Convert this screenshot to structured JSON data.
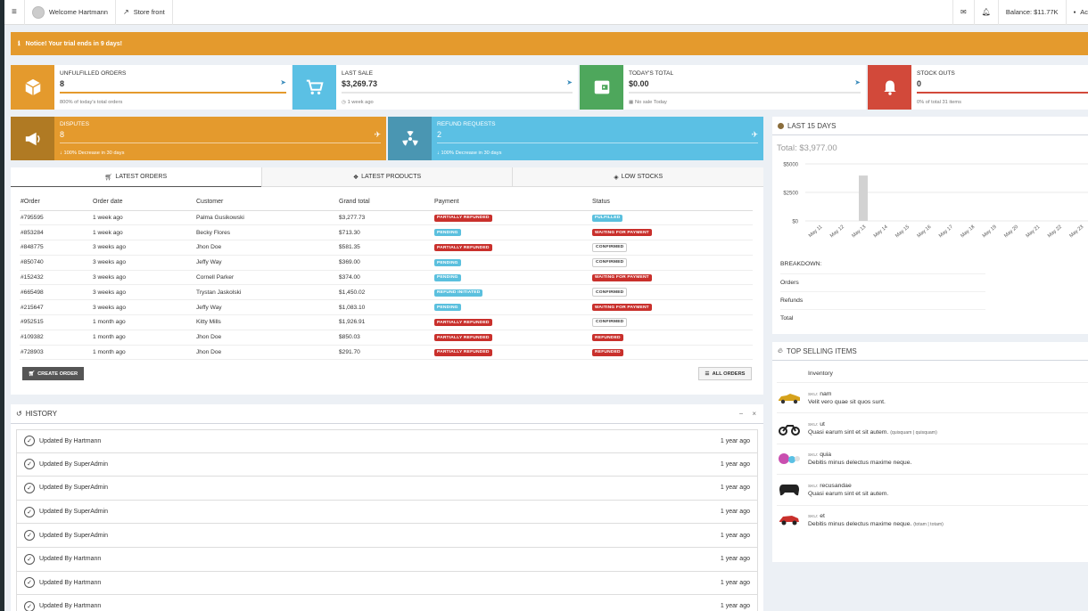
{
  "topbar": {
    "welcome": "Welcome Hartmann",
    "storefront": "Store front",
    "balance": "Balance: $11.77K",
    "account": "Ac"
  },
  "notice": {
    "label": "Notice!",
    "text": "Your trial ends in 9 days!"
  },
  "kpis": [
    {
      "label": "UNFULFILLED ORDERS",
      "value": "8",
      "sub": "800% of today's total orders",
      "color": "#e49a2d",
      "progress": 1.0
    },
    {
      "label": "LAST SALE",
      "value": "$3,269.73",
      "sub": "1 week ago",
      "color": "#5bc0e4",
      "progress": 0
    },
    {
      "label": "TODAY'S TOTAL",
      "value": "$0.00",
      "sub": "No sale Today",
      "color": "#4ea75c",
      "progress": 0
    },
    {
      "label": "STOCK OUTS",
      "value": "0",
      "sub": "0% of total 31 items",
      "color": "#d2493a",
      "progress": 1.0
    }
  ],
  "disputes": {
    "label": "DISPUTES",
    "value": "8",
    "sub": "100% Decrease in 30 days",
    "color": "#e49a2d",
    "icon_bg": "#b07a23"
  },
  "refunds": {
    "label": "REFUND REQUESTS",
    "value": "2",
    "sub": "100% Decrease in 30 days",
    "color": "#5bc0e4",
    "icon_bg": "#4a96b2"
  },
  "tabs": [
    "LATEST ORDERS",
    "LATEST PRODUCTS",
    "LOW STOCKS"
  ],
  "orders": {
    "headers": [
      "#Order",
      "Order date",
      "Customer",
      "Grand total",
      "Payment",
      "Status"
    ],
    "rows": [
      {
        "id": "#795595",
        "date": "1 week ago",
        "customer": "Palma Gusikowski",
        "total": "$3,277.73",
        "payment": "PARTIALLY REFUNDED",
        "status": "FULFILLED"
      },
      {
        "id": "#853284",
        "date": "1 week ago",
        "customer": "Becky Flores",
        "total": "$713.30",
        "payment": "PENDING",
        "status": "WAITING FOR PAYMENT"
      },
      {
        "id": "#848775",
        "date": "3 weeks ago",
        "customer": "Jhon Doe",
        "total": "$581.35",
        "payment": "PARTIALLY REFUNDED",
        "status": "CONFIRMED"
      },
      {
        "id": "#850740",
        "date": "3 weeks ago",
        "customer": "Jeffy Way",
        "total": "$369.00",
        "payment": "PENDING",
        "status": "CONFIRMED"
      },
      {
        "id": "#152432",
        "date": "3 weeks ago",
        "customer": "Cornell Parker",
        "total": "$374.00",
        "payment": "PENDING",
        "status": "WAITING FOR PAYMENT"
      },
      {
        "id": "#665498",
        "date": "3 weeks ago",
        "customer": "Trystan Jaskolski",
        "total": "$1,450.02",
        "payment": "REFUND INITIATED",
        "status": "CONFIRMED"
      },
      {
        "id": "#215647",
        "date": "3 weeks ago",
        "customer": "Jeffy Way",
        "total": "$1,083.10",
        "payment": "PENDING",
        "status": "WAITING FOR PAYMENT"
      },
      {
        "id": "#952515",
        "date": "1 month ago",
        "customer": "Kitty Mills",
        "total": "$1,926.91",
        "payment": "PARTIALLY REFUNDED",
        "status": "CONFIRMED"
      },
      {
        "id": "#109382",
        "date": "1 month ago",
        "customer": "Jhon Doe",
        "total": "$850.03",
        "payment": "PARTIALLY REFUNDED",
        "status": "REFUNDED"
      },
      {
        "id": "#728903",
        "date": "1 month ago",
        "customer": "Jhon Doe",
        "total": "$291.70",
        "payment": "PARTIALLY REFUNDED",
        "status": "REFUNDED"
      }
    ],
    "create_button": "CREATE ORDER",
    "all_button": "ALL ORDERS"
  },
  "history": {
    "title": "HISTORY",
    "items": [
      {
        "text": "Updated By Hartmann",
        "time": "1 year ago"
      },
      {
        "text": "Updated By SuperAdmin",
        "time": "1 year ago"
      },
      {
        "text": "Updated By SuperAdmin",
        "time": "1 year ago"
      },
      {
        "text": "Updated By SuperAdmin",
        "time": "1 year ago"
      },
      {
        "text": "Updated By SuperAdmin",
        "time": "1 year ago"
      },
      {
        "text": "Updated By Hartmann",
        "time": "1 year ago"
      },
      {
        "text": "Updated By Hartmann",
        "time": "1 year ago"
      },
      {
        "text": "Updated By Hartmann",
        "time": "1 year ago"
      }
    ]
  },
  "last15": {
    "title": "LAST 15 DAYS",
    "total": "Total: $3,977.00",
    "breakdown": {
      "title": "BREAKDOWN:",
      "rows": [
        "Orders",
        "Refunds",
        "Total"
      ]
    }
  },
  "chart_data": {
    "type": "bar",
    "categories": [
      "May 11",
      "May 12",
      "May 13",
      "May 14",
      "May 15",
      "May 16",
      "May 17",
      "May 18",
      "May 19",
      "May 20",
      "May 21",
      "May 22",
      "May 23"
    ],
    "values": [
      0,
      0,
      3977,
      0,
      0,
      0,
      0,
      0,
      0,
      0,
      0,
      0,
      0
    ],
    "ylim": [
      0,
      5000
    ],
    "yticks": [
      "$0",
      "$2500",
      "$5000"
    ],
    "grid": true,
    "bar_color": "#d2d2d2"
  },
  "top_selling": {
    "title": "TOP SELLING ITEMS",
    "header": "Inventory",
    "items": [
      {
        "sku_label": "SKU:",
        "sku": "nam",
        "desc": "Velit vero quae sit quos sunt.",
        "extra": "",
        "icon": "car-yellow-icon"
      },
      {
        "sku_label": "SKU:",
        "sku": "ut",
        "desc": "Quasi earum sint et sit autem.",
        "extra": "(quisquam | quisquam)",
        "icon": "motorbike-icon"
      },
      {
        "sku_label": "SKU:",
        "sku": "quia",
        "desc": "Debitis minus delectus maxime neque.",
        "extra": "",
        "icon": "balls-icon"
      },
      {
        "sku_label": "SKU:",
        "sku": "recusandae",
        "desc": "Quasi earum sint et sit autem.",
        "extra": "",
        "icon": "gamepad-icon"
      },
      {
        "sku_label": "SKU:",
        "sku": "et",
        "desc": "Debitis minus delectus maxime neque.",
        "extra": "(totam | totam)",
        "icon": "car-red-icon"
      }
    ]
  }
}
